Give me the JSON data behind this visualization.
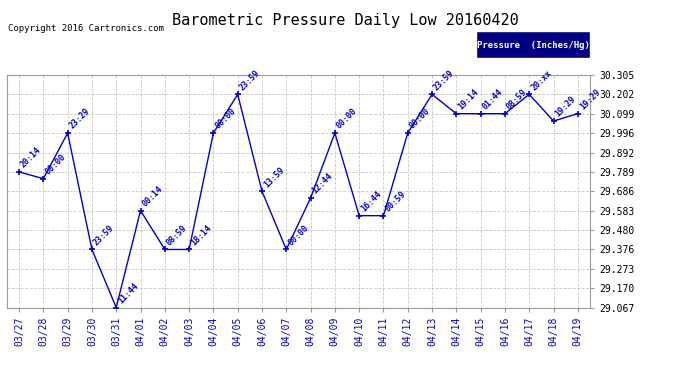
{
  "title": "Barometric Pressure Daily Low 20160420",
  "copyright": "Copyright 2016 Cartronics.com",
  "legend_label": "Pressure  (Inches/Hg)",
  "dates": [
    "03/27",
    "03/28",
    "03/29",
    "03/30",
    "03/31",
    "04/01",
    "04/02",
    "04/03",
    "04/04",
    "04/05",
    "04/06",
    "04/07",
    "04/08",
    "04/09",
    "04/10",
    "04/11",
    "04/12",
    "04/13",
    "04/14",
    "04/15",
    "04/16",
    "04/17",
    "04/18",
    "04/19"
  ],
  "values": [
    29.789,
    29.753,
    29.996,
    29.376,
    29.067,
    29.583,
    29.376,
    29.376,
    29.996,
    30.202,
    29.686,
    29.376,
    29.65,
    29.996,
    29.556,
    29.556,
    29.996,
    30.202,
    30.099,
    30.099,
    30.099,
    30.202,
    30.06,
    30.099
  ],
  "time_labels": [
    "20:14",
    "00:00",
    "23:29",
    "23:59",
    "11:44",
    "00:14",
    "08:59",
    "18:14",
    "00:00",
    "23:59",
    "13:59",
    "00:00",
    "12:44",
    "00:00",
    "16:44",
    "00:59",
    "00:00",
    "23:59",
    "19:14",
    "01:44",
    "08:59",
    "20:xx",
    "19:29",
    "19:29"
  ],
  "ylim_min": 29.067,
  "ylim_max": 30.305,
  "yticks": [
    29.067,
    29.17,
    29.273,
    29.376,
    29.48,
    29.583,
    29.686,
    29.789,
    29.892,
    29.996,
    30.099,
    30.202,
    30.305
  ],
  "line_color": "#0000cc",
  "marker_color": "#0000cc",
  "label_color": "#0000cc",
  "grid_color": "#c8c8c8",
  "bg_color": "#ffffff",
  "legend_bg": "#000080",
  "legend_fg": "#ffffff",
  "title_fontsize": 11,
  "tick_fontsize": 7,
  "label_fontsize": 6,
  "copyright_fontsize": 6.5
}
